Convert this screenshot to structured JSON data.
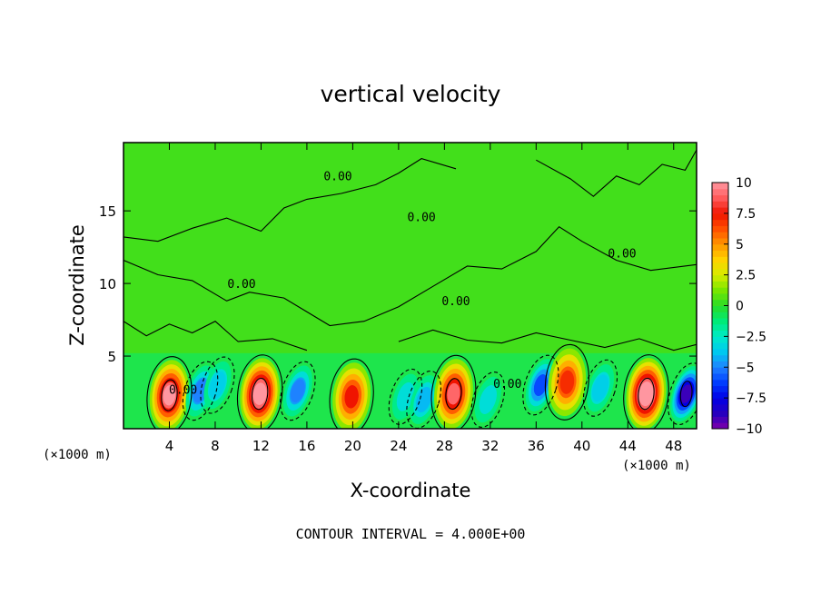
{
  "chart_data": {
    "type": "heatmap",
    "title": "vertical velocity",
    "xlabel": "X-coordinate",
    "ylabel": "Z-coordinate",
    "x_unit_left": "(×1000 m)",
    "x_unit_right": "(×1000 m)",
    "footer": "CONTOUR INTERVAL = 4.000E+00",
    "xlim": [
      0,
      50
    ],
    "ylim": [
      0,
      19.7
    ],
    "x_ticks": [
      4,
      8,
      12,
      16,
      20,
      24,
      28,
      32,
      36,
      40,
      44,
      48
    ],
    "x_tick_labels": [
      "4",
      "8",
      "12",
      "16",
      "20",
      "24",
      "28",
      "32",
      "36",
      "40",
      "44",
      "48"
    ],
    "y_ticks": [
      5,
      10,
      15
    ],
    "y_tick_labels": [
      "5",
      "10",
      "15"
    ],
    "colorbar": {
      "ticks": [
        10,
        7.5,
        5,
        2.5,
        0,
        -2.5,
        -5,
        -7.5,
        -10
      ],
      "labels": [
        "10",
        "7.5",
        "5",
        "2.5",
        "0",
        "−2.5",
        "−5",
        "−7.5",
        "−10"
      ],
      "range": [
        -10,
        10
      ]
    },
    "contour_labels": [
      {
        "text": "0.00",
        "x": 18.7,
        "y": 17.1
      },
      {
        "text": "0.00",
        "x": 26.0,
        "y": 14.3
      },
      {
        "text": "0.00",
        "x": 43.5,
        "y": 11.8
      },
      {
        "text": "0.00",
        "x": 10.3,
        "y": 9.7
      },
      {
        "text": "0.00",
        "x": 29.0,
        "y": 8.5
      },
      {
        "text": "0.00",
        "x": 33.5,
        "y": 2.8
      },
      {
        "text": "0.00",
        "x": 5.2,
        "y": 2.4
      }
    ],
    "features": [
      {
        "x": 4.0,
        "z": 2.3,
        "w": 10.0
      },
      {
        "x": 6.7,
        "z": 2.6,
        "w": -5.0
      },
      {
        "x": 8.2,
        "z": 3.0,
        "w": -3.5
      },
      {
        "x": 11.9,
        "z": 2.4,
        "w": 11.0
      },
      {
        "x": 15.2,
        "z": 2.6,
        "w": -5.0
      },
      {
        "x": 19.9,
        "z": 2.2,
        "w": 7.5
      },
      {
        "x": 24.6,
        "z": 2.2,
        "w": -3.0
      },
      {
        "x": 26.2,
        "z": 2.0,
        "w": -4.0
      },
      {
        "x": 28.8,
        "z": 2.4,
        "w": 9.0
      },
      {
        "x": 31.8,
        "z": 2.0,
        "w": -3.0
      },
      {
        "x": 36.4,
        "z": 3.0,
        "w": -6.0
      },
      {
        "x": 38.7,
        "z": 3.2,
        "w": 7.0
      },
      {
        "x": 41.6,
        "z": 2.8,
        "w": -3.5
      },
      {
        "x": 45.6,
        "z": 2.4,
        "w": 11.5
      },
      {
        "x": 49.1,
        "z": 2.4,
        "w": -9.0
      }
    ]
  }
}
